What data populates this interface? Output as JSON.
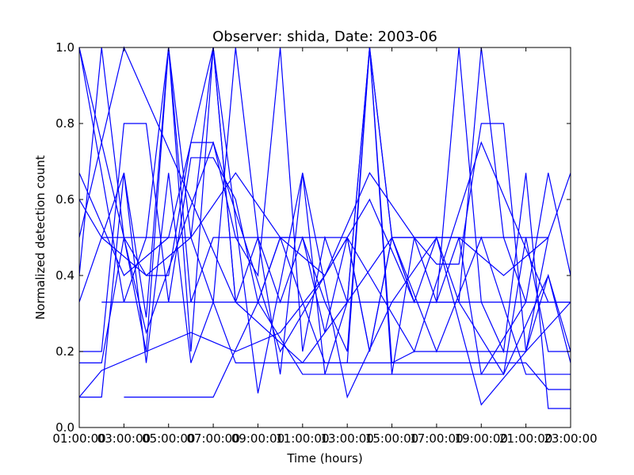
{
  "chart_data": {
    "type": "line",
    "title": "Observer: shida, Date: 2003-06",
    "xlabel": "Time (hours)",
    "ylabel": "Normalized detection count",
    "xlim": [
      1,
      23
    ],
    "ylim": [
      0,
      1.0
    ],
    "x_tick_values": [
      1,
      3,
      5,
      7,
      9,
      11,
      13,
      15,
      17,
      19,
      21,
      23
    ],
    "x_tick_labels": [
      "01:00:00",
      "03:00:00",
      "05:00:00",
      "07:00:00",
      "09:00:00",
      "11:00:00",
      "13:00:00",
      "15:00:00",
      "17:00:00",
      "19:00:00",
      "21:00:00",
      "23:00:00"
    ],
    "y_tick_values": [
      0.0,
      0.2,
      0.4,
      0.6,
      0.8,
      1.0
    ],
    "y_tick_labels": [
      "0.0",
      "0.2",
      "0.4",
      "0.6",
      "0.8",
      "1.0"
    ],
    "grid": false,
    "line_color": "#0000ff",
    "series": [
      {
        "x": [
          1,
          2,
          3,
          4,
          5,
          6,
          7,
          8,
          9,
          10,
          11,
          12,
          13,
          14,
          15,
          16,
          17,
          18,
          19,
          20,
          21,
          22,
          23
        ],
        "y": [
          1.0,
          0.67,
          0.33,
          0.5,
          1.0,
          0.5,
          0.33,
          1.0,
          0.5,
          0.33,
          0.5,
          0.33,
          0.2,
          1.0,
          0.5,
          0.33,
          0.5,
          0.33,
          1.0,
          0.5,
          0.33,
          0.67,
          0.4
        ]
      },
      {
        "x": [
          1,
          2,
          3,
          4,
          5,
          6,
          7,
          8,
          9,
          10,
          11,
          12,
          13,
          14,
          15,
          16,
          17,
          18,
          19,
          20,
          21,
          22,
          23
        ],
        "y": [
          0.2,
          0.2,
          0.8,
          0.8,
          0.33,
          0.71,
          0.71,
          0.6,
          0.33,
          0.5,
          0.5,
          0.25,
          0.5,
          0.2,
          0.5,
          0.5,
          0.43,
          0.43,
          0.8,
          0.8,
          0.2,
          0.4,
          0.17
        ]
      },
      {
        "x": [
          1,
          2,
          3,
          4,
          5,
          6,
          7,
          8,
          9,
          10,
          11,
          12,
          13,
          14,
          15,
          16,
          17,
          18,
          19,
          20,
          21,
          22
        ],
        "y": [
          0.17,
          0.17,
          0.5,
          0.4,
          0.4,
          0.75,
          0.75,
          0.5,
          0.5,
          0.5,
          0.33,
          0.17,
          0.17,
          1.0,
          0.17,
          0.2,
          0.2,
          0.2,
          0.2,
          0.2,
          0.2,
          0.5
        ]
      },
      {
        "x": [
          1,
          2,
          3,
          4,
          5,
          6,
          7,
          8,
          9,
          10,
          11,
          12,
          13,
          14,
          15,
          16,
          17,
          18,
          19,
          20,
          21,
          22,
          23
        ],
        "y": [
          0.6,
          0.5,
          0.5,
          0.5,
          0.5,
          0.5,
          1.0,
          0.33,
          0.33,
          0.5,
          0.5,
          0.5,
          0.5,
          0.2,
          0.5,
          0.5,
          0.5,
          0.5,
          0.5,
          0.5,
          0.5,
          0.5,
          0.67
        ]
      },
      {
        "x": [
          1,
          2,
          3,
          4,
          5,
          6,
          7,
          8,
          9,
          10,
          11,
          12,
          13,
          14,
          15,
          16,
          17,
          18,
          19,
          20,
          21,
          22,
          23
        ],
        "y": [
          0.33,
          0.5,
          0.67,
          0.29,
          1.0,
          0.2,
          1.0,
          0.33,
          0.5,
          0.14,
          0.67,
          0.14,
          0.33,
          1.0,
          0.14,
          0.5,
          0.33,
          0.5,
          0.14,
          0.14,
          0.5,
          0.2,
          0.2
        ]
      },
      {
        "x": [
          1,
          2,
          3,
          4,
          5,
          6,
          7,
          8,
          9,
          10,
          11,
          12,
          13,
          14,
          15,
          16,
          17,
          18,
          19,
          20,
          21,
          22,
          23
        ],
        "y": [
          0.08,
          0.08,
          0.67,
          0.17,
          0.67,
          0.17,
          0.33,
          0.17,
          0.17,
          0.17,
          0.17,
          0.17,
          0.17,
          0.17,
          0.17,
          0.17,
          0.17,
          0.17,
          0.17,
          0.17,
          0.17,
          0.1,
          0.1
        ]
      },
      {
        "x": [
          2,
          3,
          4,
          5,
          6,
          7,
          8,
          9,
          10,
          11,
          12,
          13,
          14,
          15,
          16,
          17,
          18,
          19,
          20,
          21,
          22,
          23
        ],
        "y": [
          0.33,
          0.33,
          0.33,
          0.33,
          0.33,
          0.33,
          0.33,
          0.33,
          0.33,
          0.33,
          0.33,
          0.33,
          0.33,
          0.33,
          0.33,
          0.33,
          0.33,
          0.33,
          0.33,
          0.33,
          0.33,
          0.33
        ]
      },
      {
        "x": [
          1,
          2,
          3,
          4,
          5,
          6,
          7,
          8,
          9,
          10,
          11,
          12,
          13,
          14,
          15,
          16,
          17,
          18,
          19,
          20,
          21,
          22,
          23
        ],
        "y": [
          0.4,
          1.0,
          0.5,
          0.2,
          1.0,
          0.33,
          0.5,
          0.5,
          0.4,
          1.0,
          0.2,
          0.5,
          0.33,
          1.0,
          0.5,
          0.33,
          0.33,
          1.0,
          0.33,
          0.2,
          0.67,
          0.05,
          0.05
        ]
      },
      {
        "x": [
          1,
          3,
          5,
          7,
          9,
          11,
          13,
          15,
          17,
          19,
          21,
          23
        ],
        "y": [
          0.67,
          0.4,
          0.5,
          1.0,
          0.09,
          0.67,
          0.08,
          0.33,
          0.5,
          0.06,
          0.2,
          0.33
        ]
      },
      {
        "x": [
          1,
          2,
          4,
          6,
          8,
          10,
          12,
          14,
          16,
          18,
          20,
          22,
          23
        ],
        "y": [
          0.08,
          0.15,
          0.2,
          0.25,
          0.2,
          0.25,
          0.4,
          0.6,
          0.33,
          0.33,
          0.14,
          0.4,
          0.2
        ]
      },
      {
        "x": [
          3,
          5,
          7,
          9,
          11,
          13,
          15,
          17,
          19,
          21,
          23
        ],
        "y": [
          0.08,
          0.08,
          0.08,
          0.33,
          0.14,
          0.14,
          0.14,
          0.14,
          0.14,
          0.33,
          0.33
        ]
      },
      {
        "x": [
          1,
          3,
          6,
          8,
          11,
          13,
          15,
          17,
          19,
          21,
          23
        ],
        "y": [
          0.5,
          1.0,
          0.6,
          0.33,
          0.17,
          0.33,
          0.5,
          0.2,
          0.5,
          0.14,
          0.14
        ]
      },
      {
        "x": [
          2,
          4,
          6,
          8,
          10,
          12,
          14,
          16,
          18,
          20,
          22
        ],
        "y": [
          0.5,
          0.4,
          0.5,
          0.67,
          0.5,
          0.4,
          0.67,
          0.5,
          0.5,
          0.4,
          0.5
        ]
      },
      {
        "x": [
          1,
          4,
          7,
          10,
          13,
          16,
          19,
          22
        ],
        "y": [
          1.0,
          0.25,
          0.75,
          0.2,
          0.5,
          0.2,
          0.75,
          0.33
        ]
      }
    ]
  }
}
